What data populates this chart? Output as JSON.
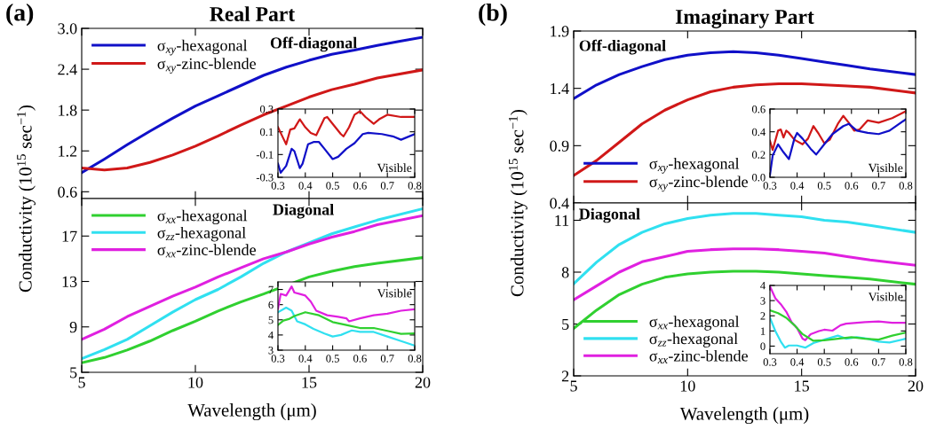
{
  "chart_data": [
    {
      "type": "line",
      "title": "Real Part",
      "annotations": [
        "(a)",
        "Off-diagonal"
      ],
      "xlim": [
        5,
        20
      ],
      "xticks": [
        5,
        10,
        15,
        20
      ],
      "ylim": [
        0.5,
        3.0
      ],
      "yticks": [
        0.6,
        1.2,
        1.8,
        2.4,
        {
          "value": 3,
          "label": "3.0"
        }
      ],
      "tick_labels": "y",
      "legend": "top left",
      "series": [
        {
          "name": "σ$_{xy}$-hexagonal",
          "color": "#1010c8",
          "x": [
            5,
            6,
            7,
            8,
            9,
            10,
            11,
            12,
            13,
            14,
            15,
            16,
            17,
            18,
            19,
            20
          ],
          "values": [
            0.88,
            1.08,
            1.29,
            1.49,
            1.68,
            1.86,
            2.01,
            2.16,
            2.31,
            2.43,
            2.53,
            2.62,
            2.68,
            2.75,
            2.81,
            2.87
          ]
        },
        {
          "name": "σ$_{xy}$-zinc-blende",
          "color": "#d01818",
          "x": [
            5,
            6,
            7,
            8,
            9,
            10,
            11,
            12,
            13,
            14,
            15,
            16,
            17,
            18,
            20
          ],
          "values": [
            0.95,
            0.92,
            0.95,
            1.03,
            1.14,
            1.27,
            1.42,
            1.58,
            1.73,
            1.86,
            1.99,
            2.1,
            2.18,
            2.27,
            2.39
          ]
        }
      ]
    },
    {
      "type": "line",
      "annotations": [
        "Visible"
      ],
      "xlim": [
        0.3,
        0.8
      ],
      "xticks": [
        0.3,
        0.4,
        0.5,
        0.6,
        0.7,
        0.8
      ],
      "ylim": [
        -0.3,
        0.3
      ],
      "yticks": [
        -0.3,
        -0.1,
        0.1,
        0.3
      ],
      "series": [
        {
          "color": "#d01818",
          "x": [
            0.3,
            0.32,
            0.33,
            0.345,
            0.36,
            0.37,
            0.38,
            0.4,
            0.42,
            0.44,
            0.47,
            0.48,
            0.5,
            0.53,
            0.54,
            0.56,
            0.58,
            0.6,
            0.62,
            0.65,
            0.67,
            0.7,
            0.75,
            0.8
          ],
          "values": [
            0.14,
            0.04,
            -0.01,
            0.12,
            0.13,
            0.17,
            0.21,
            0.14,
            0.09,
            0.07,
            0.22,
            0.23,
            0.17,
            0.08,
            0.06,
            0.14,
            0.25,
            0.28,
            0.23,
            0.17,
            0.21,
            0.25,
            0.23,
            0.23
          ]
        },
        {
          "color": "#1010c8",
          "x": [
            0.3,
            0.31,
            0.33,
            0.35,
            0.36,
            0.38,
            0.39,
            0.41,
            0.43,
            0.45,
            0.47,
            0.5,
            0.52,
            0.55,
            0.58,
            0.61,
            0.63,
            0.68,
            0.72,
            0.75,
            0.8
          ],
          "values": [
            -0.18,
            -0.26,
            -0.2,
            -0.05,
            -0.07,
            -0.22,
            -0.18,
            -0.01,
            0.01,
            0.01,
            -0.05,
            -0.14,
            -0.12,
            -0.05,
            0.0,
            0.08,
            0.09,
            0.08,
            0.06,
            0.03,
            0.08
          ]
        }
      ]
    },
    {
      "type": "line",
      "annotations": [
        "Diagonal"
      ],
      "xlabel": "Wavelength (μm)",
      "ylabel": "Conductivity (10$^{15}$ sec$^{−1}$)",
      "xlim": [
        5,
        20
      ],
      "xticks": [
        5,
        10,
        15,
        20
      ],
      "ylim": [
        5,
        20.3
      ],
      "yticks": [
        5,
        9,
        13,
        17
      ],
      "legend": "top left",
      "series": [
        {
          "name": "σ$_{xx}$-hexagonal",
          "color": "#30d030",
          "x": [
            5,
            6,
            7,
            8,
            9,
            10,
            11,
            12,
            13,
            15,
            16,
            17,
            18,
            20
          ],
          "values": [
            5.84,
            6.3,
            6.96,
            7.75,
            8.67,
            9.5,
            10.4,
            11.2,
            11.9,
            13.4,
            13.9,
            14.3,
            14.6,
            15.1
          ]
        },
        {
          "name": "σ$_{zz}$-hexagonal",
          "color": "#30e0f0",
          "x": [
            5,
            6,
            7,
            8,
            9,
            10,
            11,
            12,
            13,
            14,
            15,
            16,
            17,
            18,
            20
          ],
          "values": [
            6.2,
            7.0,
            7.9,
            9.1,
            10.3,
            11.4,
            12.3,
            13.4,
            14.6,
            15.6,
            16.4,
            17.2,
            17.8,
            18.4,
            19.4
          ]
        },
        {
          "name": "σ$_{xx}$-zinc-blende",
          "color": "#e020e0",
          "x": [
            5,
            6,
            7,
            8,
            9,
            10,
            11,
            12,
            13,
            14,
            15,
            16,
            17,
            18,
            20
          ],
          "values": [
            7.9,
            8.8,
            9.9,
            10.8,
            11.7,
            12.5,
            13.4,
            14.2,
            15.0,
            15.6,
            16.3,
            16.9,
            17.4,
            18.0,
            18.8
          ]
        }
      ]
    },
    {
      "type": "line",
      "annotations": [
        "Visible"
      ],
      "xlim": [
        0.3,
        0.8
      ],
      "xticks": [
        0.3,
        0.4,
        0.5,
        0.6,
        0.7,
        0.8
      ],
      "ylim": [
        3,
        7.5
      ],
      "yticks": [
        3,
        4,
        5,
        6,
        7
      ],
      "series": [
        {
          "color": "#e020e0",
          "x": [
            0.3,
            0.31,
            0.33,
            0.35,
            0.36,
            0.38,
            0.4,
            0.42,
            0.44,
            0.48,
            0.52,
            0.55,
            0.56,
            0.6,
            0.65,
            0.7,
            0.75,
            0.8
          ],
          "values": [
            5.73,
            6.71,
            6.6,
            7.2,
            6.8,
            6.7,
            6.6,
            6.2,
            5.6,
            5.3,
            5.2,
            5.1,
            4.9,
            5.1,
            5.3,
            5.4,
            5.6,
            5.7
          ]
        },
        {
          "color": "#30e0f0",
          "x": [
            0.3,
            0.33,
            0.35,
            0.37,
            0.4,
            0.43,
            0.47,
            0.5,
            0.53,
            0.57,
            0.6,
            0.65,
            0.7,
            0.75,
            0.8
          ],
          "values": [
            5.5,
            5.8,
            5.6,
            4.9,
            4.7,
            4.4,
            4.1,
            3.9,
            4.0,
            4.3,
            4.2,
            4.2,
            3.9,
            3.6,
            3.3
          ]
        },
        {
          "color": "#30d030",
          "x": [
            0.3,
            0.32,
            0.34,
            0.36,
            0.4,
            0.45,
            0.5,
            0.55,
            0.6,
            0.65,
            0.7,
            0.75,
            0.8
          ],
          "values": [
            4.66,
            4.95,
            5.05,
            5.25,
            5.5,
            5.3,
            4.85,
            4.66,
            4.46,
            4.46,
            4.27,
            4.07,
            4.1
          ]
        }
      ]
    },
    {
      "type": "line",
      "title": "Imaginary Part",
      "annotations": [
        "(b)",
        "Off-diagonal"
      ],
      "xlim": [
        5,
        20
      ],
      "xticks": [
        5,
        10,
        15,
        20
      ],
      "ylim": [
        0.4,
        1.9
      ],
      "yticks": [
        0.4,
        0.9,
        1.4,
        1.9
      ],
      "tick_labels": "y",
      "legend": "bottom left",
      "series": [
        {
          "name": "σ$_{xy}$-hexagonal",
          "color": "#1010c8",
          "x": [
            5,
            6,
            7,
            8,
            9,
            10,
            11,
            12,
            13,
            14,
            15,
            16,
            17,
            18,
            20
          ],
          "values": [
            1.31,
            1.43,
            1.52,
            1.59,
            1.65,
            1.69,
            1.71,
            1.72,
            1.71,
            1.69,
            1.66,
            1.63,
            1.6,
            1.57,
            1.52
          ]
        },
        {
          "name": "σ$_{xy}$-zinc-blende",
          "color": "#d01818",
          "x": [
            5,
            6,
            7,
            8,
            9,
            10,
            11,
            12,
            13,
            14,
            15,
            16,
            17,
            18,
            20
          ],
          "values": [
            0.64,
            0.77,
            0.93,
            1.09,
            1.21,
            1.3,
            1.37,
            1.41,
            1.43,
            1.44,
            1.44,
            1.43,
            1.42,
            1.41,
            1.36
          ]
        }
      ]
    },
    {
      "type": "line",
      "annotations": [
        "Visible"
      ],
      "xlim": [
        0.3,
        0.8
      ],
      "xticks": [
        0.3,
        0.4,
        0.5,
        0.6,
        0.7,
        0.8
      ],
      "ylim": [
        0.0,
        0.6
      ],
      "yticks": [
        {
          "value": 0,
          "label": "0.0"
        },
        0.2,
        0.4,
        0.6
      ],
      "series": [
        {
          "color": "#d01818",
          "x": [
            0.3,
            0.31,
            0.33,
            0.34,
            0.35,
            0.36,
            0.37,
            0.39,
            0.42,
            0.44,
            0.46,
            0.48,
            0.5,
            0.52,
            0.55,
            0.57,
            0.59,
            0.61,
            0.63,
            0.66,
            0.7,
            0.75,
            0.8
          ],
          "values": [
            0.32,
            0.24,
            0.41,
            0.42,
            0.35,
            0.41,
            0.39,
            0.33,
            0.29,
            0.34,
            0.45,
            0.38,
            0.3,
            0.33,
            0.47,
            0.54,
            0.48,
            0.41,
            0.42,
            0.5,
            0.48,
            0.52,
            0.58
          ]
        },
        {
          "color": "#1010c8",
          "x": [
            0.3,
            0.31,
            0.33,
            0.35,
            0.37,
            0.39,
            0.4,
            0.42,
            0.45,
            0.47,
            0.5,
            0.53,
            0.57,
            0.59,
            0.62,
            0.66,
            0.7,
            0.74,
            0.8
          ],
          "values": [
            0.02,
            0.19,
            0.29,
            0.22,
            0.16,
            0.34,
            0.39,
            0.34,
            0.25,
            0.2,
            0.29,
            0.38,
            0.45,
            0.47,
            0.41,
            0.39,
            0.38,
            0.41,
            0.51
          ]
        }
      ]
    },
    {
      "type": "line",
      "annotations": [
        "Diagonal"
      ],
      "xlabel": "Wavelength (μm)",
      "ylabel": "Conductivity (10$^{15}$ sec$^{−1}$)",
      "xlim": [
        5,
        20
      ],
      "xticks": [
        5,
        10,
        15,
        20
      ],
      "ylim": [
        2,
        12
      ],
      "yticks": [
        2,
        5,
        8,
        11
      ],
      "legend": "bottom left",
      "series": [
        {
          "name": "σ$_{xx}$-hexagonal",
          "color": "#30d030",
          "x": [
            5,
            6,
            7,
            8,
            9,
            10,
            11,
            12,
            13,
            14,
            15,
            16,
            17,
            18,
            20
          ],
          "values": [
            4.74,
            5.8,
            6.7,
            7.3,
            7.7,
            7.9,
            8.0,
            8.05,
            8.05,
            8.0,
            7.9,
            7.8,
            7.7,
            7.6,
            7.3
          ]
        },
        {
          "name": "σ$_{zz}$-hexagonal",
          "color": "#30e0f0",
          "x": [
            5,
            6,
            7,
            8,
            9,
            10,
            11,
            12,
            13,
            14,
            15,
            16,
            17,
            18,
            20
          ],
          "values": [
            7.33,
            8.57,
            9.6,
            10.3,
            10.8,
            11.1,
            11.3,
            11.4,
            11.4,
            11.3,
            11.2,
            11.0,
            10.9,
            10.7,
            10.3
          ]
        },
        {
          "name": "σ$_{xx}$-zinc-blende",
          "color": "#e020e0",
          "x": [
            5,
            6,
            7,
            8,
            9,
            10,
            11,
            12,
            13,
            14,
            15,
            16,
            17,
            18,
            20
          ],
          "values": [
            6.4,
            7.2,
            8.0,
            8.6,
            8.9,
            9.2,
            9.3,
            9.35,
            9.35,
            9.3,
            9.2,
            9.1,
            8.9,
            8.7,
            8.4
          ]
        }
      ]
    },
    {
      "type": "line",
      "annotations": [
        "Visible"
      ],
      "xlim": [
        0.3,
        0.8
      ],
      "xticks": [
        0.3,
        0.4,
        0.5,
        0.6,
        0.7,
        0.8
      ],
      "ylim": [
        -0.5,
        4
      ],
      "yticks": [
        0,
        1,
        2,
        3,
        4
      ],
      "series": [
        {
          "color": "#e020e0",
          "x": [
            0.3,
            0.32,
            0.34,
            0.36,
            0.38,
            0.4,
            0.42,
            0.43,
            0.45,
            0.48,
            0.5,
            0.53,
            0.56,
            0.58,
            0.65,
            0.7,
            0.75,
            0.8
          ],
          "values": [
            3.94,
            3.15,
            2.76,
            2.27,
            1.58,
            1.18,
            0.49,
            0.39,
            0.79,
            0.99,
            1.08,
            1.02,
            1.38,
            1.48,
            1.58,
            1.62,
            1.54,
            1.54
          ]
        },
        {
          "color": "#30e0f0",
          "x": [
            0.3,
            0.32,
            0.34,
            0.355,
            0.37,
            0.4,
            0.43,
            0.46,
            0.5,
            0.55,
            0.58,
            0.62,
            0.66,
            0.7,
            0.74,
            0.8
          ],
          "values": [
            1.87,
            0.99,
            0.3,
            -0.1,
            0.04,
            0.04,
            -0.1,
            0.2,
            0.43,
            0.69,
            0.49,
            0.59,
            0.49,
            0.3,
            0.24,
            0.49
          ]
        },
        {
          "color": "#30d030",
          "x": [
            0.3,
            0.33,
            0.36,
            0.39,
            0.42,
            0.46,
            0.5,
            0.55,
            0.6,
            0.65,
            0.7,
            0.75,
            0.8
          ],
          "values": [
            2.36,
            2.17,
            1.87,
            1.38,
            0.79,
            0.35,
            0.39,
            0.49,
            0.59,
            0.49,
            0.43,
            0.69,
            0.89
          ]
        }
      ]
    }
  ]
}
